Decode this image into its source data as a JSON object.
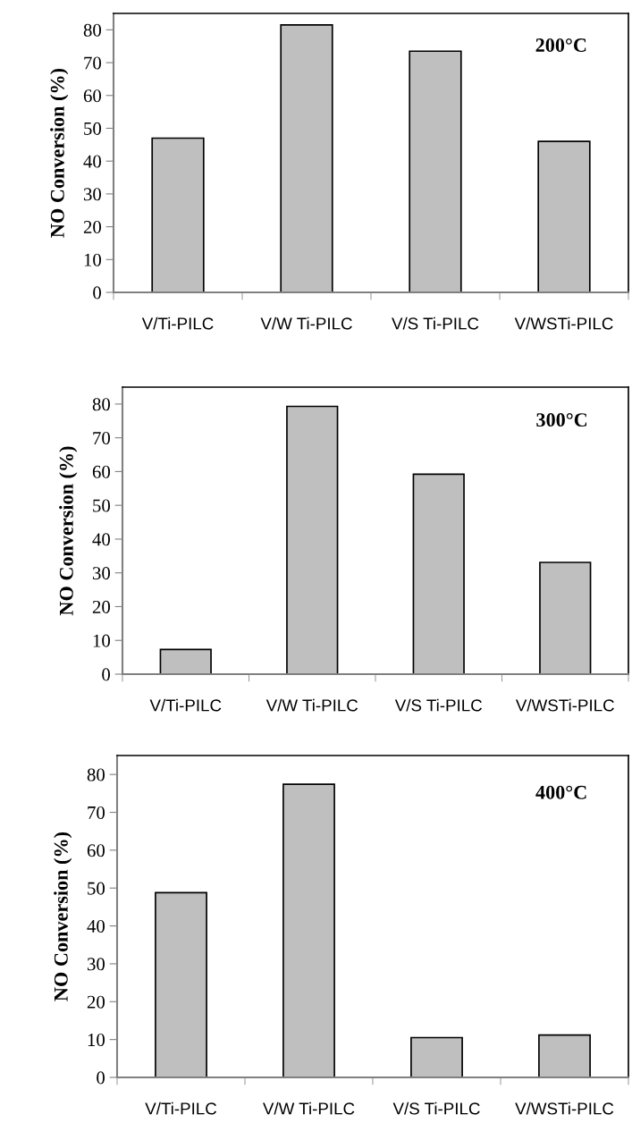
{
  "chart_data": [
    {
      "type": "bar",
      "categories": [
        "V/Ti-PILC",
        "V/W Ti-PILC",
        "V/S Ti-PILC",
        "V/WSTi-PILC"
      ],
      "values": [
        47,
        81.5,
        73.5,
        46
      ],
      "color": "#bfbfbf",
      "ylabel": "NO Conversion (%)",
      "ylim": [
        0,
        85
      ],
      "yticks": [
        0,
        10,
        20,
        30,
        40,
        50,
        60,
        70,
        80
      ],
      "annotations": [
        "200°C"
      ]
    },
    {
      "type": "bar",
      "categories": [
        "V/Ti-PILC",
        "V/W Ti-PILC",
        "V/S Ti-PILC",
        "V/WSTi-PILC"
      ],
      "values": [
        7.3,
        79.3,
        59.2,
        33.1
      ],
      "color": "#bfbfbf",
      "ylabel": "NO Conversion (%)",
      "ylim": [
        0,
        85
      ],
      "yticks": [
        0,
        10,
        20,
        30,
        40,
        50,
        60,
        70,
        80
      ],
      "annotations": [
        "300°C"
      ]
    },
    {
      "type": "bar",
      "categories": [
        "V/Ti-PILC",
        "V/W Ti-PILC",
        "V/S Ti-PILC",
        "V/WSTi-PILC"
      ],
      "values": [
        48.8,
        77.4,
        10.5,
        11.2
      ],
      "color": "#bfbfbf",
      "ylabel": "NO Conversion (%)",
      "ylim": [
        0,
        85
      ],
      "yticks": [
        0,
        10,
        20,
        30,
        40,
        50,
        60,
        70,
        80
      ],
      "annotations": [
        "400°C"
      ]
    }
  ]
}
